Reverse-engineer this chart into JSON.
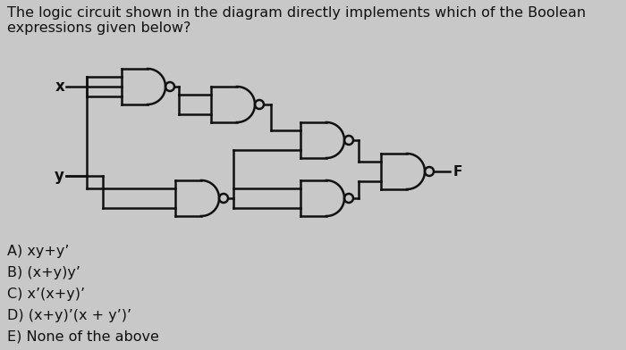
{
  "title_text": "The logic circuit shown in the diagram directly implements which of the Boolean\nexpressions given below?",
  "options": [
    "A) xy+y’",
    "B) (x+y)y’",
    "C) x’(x+y)’",
    "D) (x+y)’(x + y’)’",
    "E) None of the above"
  ],
  "bg_color": "#c8c8c8",
  "text_color": "#111111",
  "gate_color": "#111111",
  "label_x": "x",
  "label_y": "y",
  "label_f": "F",
  "title_fontsize": 11.5,
  "option_fontsize": 11.5
}
